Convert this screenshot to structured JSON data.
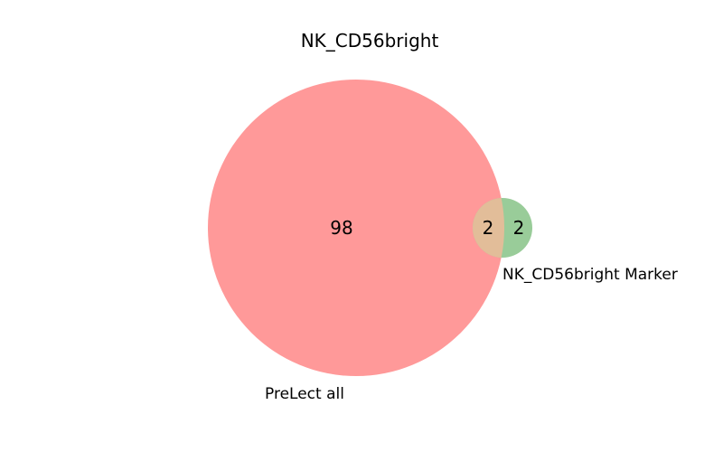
{
  "chart_data": {
    "type": "venn",
    "title": "NK_CD56bright",
    "sets": [
      {
        "name": "PreLect all",
        "only_count": 98,
        "color": "#ff9999"
      },
      {
        "name": "NK_CD56bright Marker",
        "only_count": 2,
        "color": "#99cc99"
      }
    ],
    "intersection": {
      "count": 2,
      "color": "#e2bd99"
    }
  }
}
